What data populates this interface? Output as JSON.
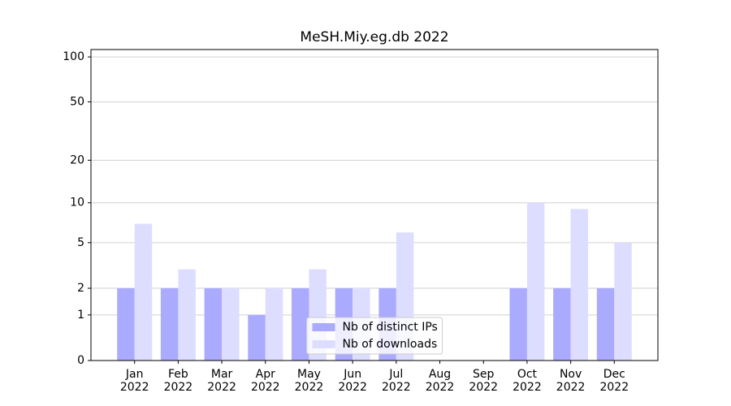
{
  "chart_data": {
    "type": "bar",
    "title": "MeSH.Miy.eg.db 2022",
    "categories": [
      [
        "Jan",
        "2022"
      ],
      [
        "Feb",
        "2022"
      ],
      [
        "Mar",
        "2022"
      ],
      [
        "Apr",
        "2022"
      ],
      [
        "May",
        "2022"
      ],
      [
        "Jun",
        "2022"
      ],
      [
        "Jul",
        "2022"
      ],
      [
        "Aug",
        "2022"
      ],
      [
        "Sep",
        "2022"
      ],
      [
        "Oct",
        "2022"
      ],
      [
        "Nov",
        "2022"
      ],
      [
        "Dec",
        "2022"
      ]
    ],
    "series": [
      {
        "name": "Nb of distinct IPs",
        "color": "#aaaaff",
        "values": [
          2,
          2,
          2,
          1,
          2,
          2,
          2,
          0,
          0,
          2,
          2,
          2
        ]
      },
      {
        "name": "Nb of downloads",
        "color": "#ddddff",
        "values": [
          7,
          3,
          2,
          2,
          3,
          2,
          6,
          0,
          0,
          10,
          9,
          5
        ]
      }
    ],
    "yscale": "log1p",
    "ylim": [
      0,
      112
    ],
    "yticks": [
      0,
      1,
      2,
      5,
      10,
      20,
      50,
      100
    ],
    "grid": true,
    "legend": "lower center"
  }
}
